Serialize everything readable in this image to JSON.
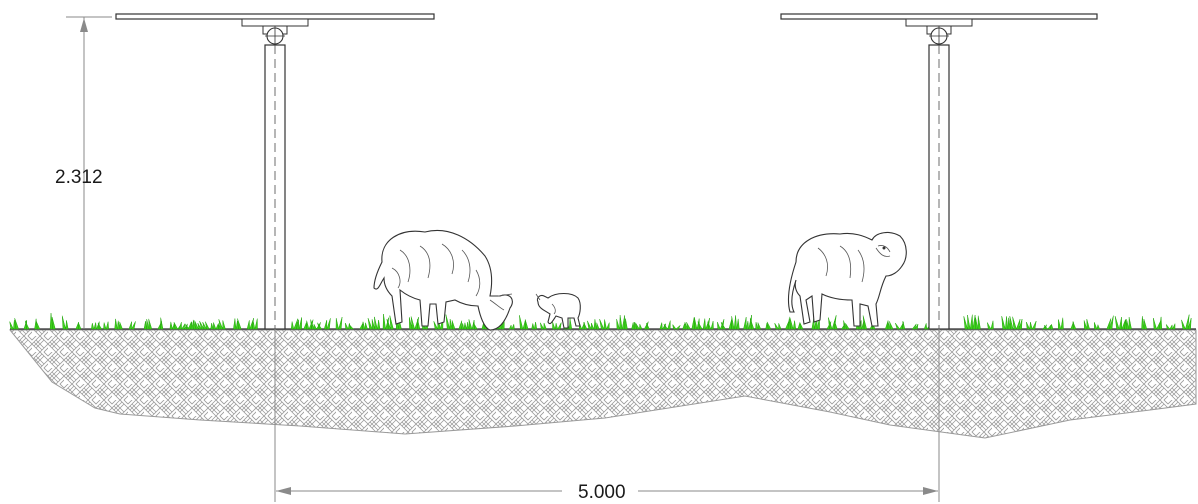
{
  "dimensions": {
    "height_label": "2.312",
    "spacing_label": "5.000"
  },
  "components": {
    "posts": 2,
    "panels": 2,
    "sheep_adults": 2,
    "lambs": 1
  },
  "colors": {
    "grass": "#3fd21c",
    "grass_dark": "#22a70c",
    "line": "#3a3a3a",
    "hatch": "#9a9a9a"
  }
}
